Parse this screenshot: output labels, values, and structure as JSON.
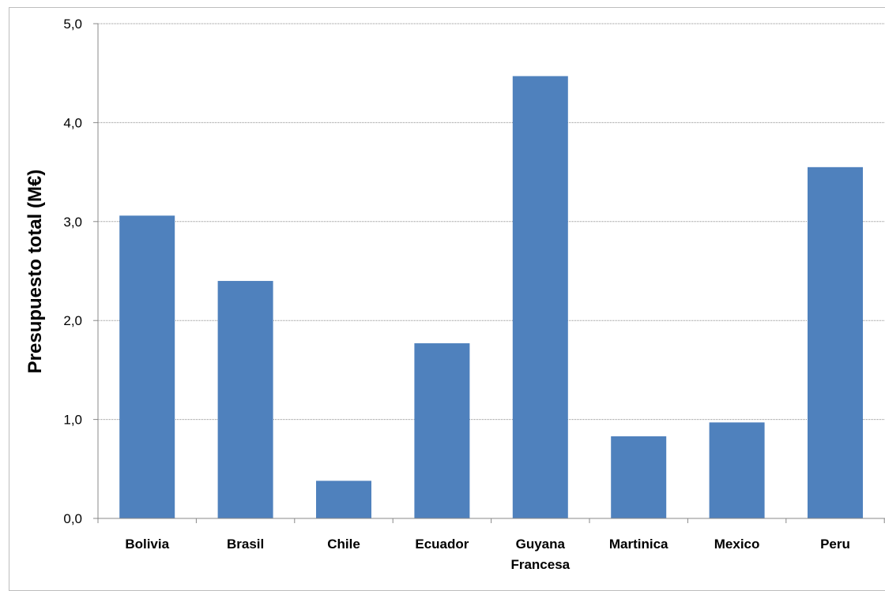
{
  "chart_data": {
    "type": "bar",
    "title": "",
    "xlabel": "",
    "ylabel": "Presupuesto total (M€)",
    "categories": [
      [
        "Bolivia"
      ],
      [
        "Brasil"
      ],
      [
        "Chile"
      ],
      [
        "Ecuador"
      ],
      [
        "Guyana",
        "Francesa"
      ],
      [
        "Martinica"
      ],
      [
        "Mexico"
      ],
      [
        "Peru"
      ]
    ],
    "values": [
      3.06,
      2.4,
      0.38,
      1.77,
      4.47,
      0.83,
      0.97,
      3.55
    ],
    "yticks": [
      "0,0",
      "1,0",
      "2,0",
      "3,0",
      "4,0",
      "5,0"
    ],
    "ylim": [
      0,
      5
    ],
    "grid": true,
    "bar_color": "#4f81bd",
    "grid_color": "#8c8c8c"
  }
}
